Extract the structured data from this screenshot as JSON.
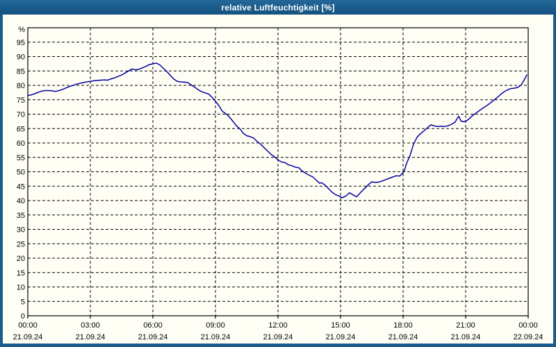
{
  "title_bar": {
    "title": "relative Luftfeuchtigkeit [%]"
  },
  "colors": {
    "frame": "#1b5c8c",
    "surface": "#fffef5",
    "line": "#0000a0",
    "grid": "#000000",
    "axis": "#000000",
    "label": "#000000",
    "title_text": "#ffffff"
  },
  "chart_data": {
    "type": "line",
    "title": "relative Luftfeuchtigkeit [%]",
    "ylabel": "%",
    "ylim": [
      0,
      100
    ],
    "xlim_hours": [
      0,
      24
    ],
    "grid": true,
    "y_axis": {
      "unit_label": "%",
      "zero_label": "0",
      "tick_values": [
        95,
        90,
        85,
        80,
        75,
        70,
        65,
        60,
        55,
        50,
        45,
        40,
        35,
        30,
        25,
        20,
        15,
        10,
        5
      ]
    },
    "x_ticks": [
      {
        "hour": 0,
        "time": "00:00",
        "date": "21.09.24"
      },
      {
        "hour": 3,
        "time": "03:00",
        "date": "21.09.24"
      },
      {
        "hour": 6,
        "time": "06:00",
        "date": "21.09.24"
      },
      {
        "hour": 9,
        "time": "09:00",
        "date": "21.09.24"
      },
      {
        "hour": 12,
        "time": "12:00",
        "date": "21.09.24"
      },
      {
        "hour": 15,
        "time": "15:00",
        "date": "21.09.24"
      },
      {
        "hour": 18,
        "time": "18:00",
        "date": "21.09.24"
      },
      {
        "hour": 21,
        "time": "21:00",
        "date": "21.09.24"
      },
      {
        "hour": 24,
        "time": "00:00",
        "date": "22.09.24"
      }
    ],
    "series": [
      {
        "name": "relative Luftfeuchtigkeit",
        "unit": "%",
        "color": "#0000a0",
        "points": [
          [
            0,
            76.5
          ],
          [
            0.17,
            76.7
          ],
          [
            0.33,
            77.1
          ],
          [
            0.5,
            77.6
          ],
          [
            0.67,
            78
          ],
          [
            0.83,
            78.2
          ],
          [
            1,
            78.2
          ],
          [
            1.17,
            78.1
          ],
          [
            1.33,
            77.9
          ],
          [
            1.5,
            78.2
          ],
          [
            1.67,
            78.6
          ],
          [
            1.83,
            79.1
          ],
          [
            2,
            79.6
          ],
          [
            2.17,
            80
          ],
          [
            2.33,
            80.4
          ],
          [
            2.5,
            80.7
          ],
          [
            2.67,
            81
          ],
          [
            2.83,
            81.2
          ],
          [
            3,
            81.4
          ],
          [
            3.17,
            81.6
          ],
          [
            3.33,
            81.7
          ],
          [
            3.5,
            81.8
          ],
          [
            3.67,
            81.9
          ],
          [
            3.83,
            81.8
          ],
          [
            4,
            82.3
          ],
          [
            4.17,
            82.6
          ],
          [
            4.33,
            83.1
          ],
          [
            4.5,
            83.6
          ],
          [
            4.67,
            84.3
          ],
          [
            4.83,
            85
          ],
          [
            5,
            85.7
          ],
          [
            5.17,
            85.4
          ],
          [
            5.33,
            85.6
          ],
          [
            5.5,
            86.1
          ],
          [
            5.67,
            86.6
          ],
          [
            5.83,
            87.2
          ],
          [
            6,
            87.5
          ],
          [
            6.17,
            87.7
          ],
          [
            6.33,
            87.1
          ],
          [
            6.5,
            85.9
          ],
          [
            6.67,
            84.8
          ],
          [
            6.83,
            83.5
          ],
          [
            7,
            82.2
          ],
          [
            7.17,
            81.4
          ],
          [
            7.33,
            81.2
          ],
          [
            7.5,
            81.1
          ],
          [
            7.67,
            81
          ],
          [
            7.83,
            80.2
          ],
          [
            8,
            79.4
          ],
          [
            8.17,
            78.5
          ],
          [
            8.33,
            77.8
          ],
          [
            8.5,
            77.4
          ],
          [
            8.67,
            77
          ],
          [
            8.83,
            75.9
          ],
          [
            9,
            74.5
          ],
          [
            9.17,
            72.9
          ],
          [
            9.33,
            71
          ],
          [
            9.5,
            70.2
          ],
          [
            9.67,
            69
          ],
          [
            9.83,
            67.6
          ],
          [
            10,
            66
          ],
          [
            10.17,
            64.9
          ],
          [
            10.33,
            63.4
          ],
          [
            10.5,
            62.5
          ],
          [
            10.67,
            62.2
          ],
          [
            10.83,
            61.7
          ],
          [
            11,
            60.5
          ],
          [
            11.17,
            59.6
          ],
          [
            11.33,
            58.4
          ],
          [
            11.5,
            57.2
          ],
          [
            11.67,
            56
          ],
          [
            11.83,
            55.2
          ],
          [
            12,
            54.1
          ],
          [
            12.17,
            53.4
          ],
          [
            12.33,
            53.2
          ],
          [
            12.5,
            52.4
          ],
          [
            12.67,
            52.1
          ],
          [
            12.83,
            51.6
          ],
          [
            13,
            51.4
          ],
          [
            13.17,
            50.2
          ],
          [
            13.33,
            49.5
          ],
          [
            13.5,
            48.8
          ],
          [
            13.67,
            48.2
          ],
          [
            13.83,
            47.1
          ],
          [
            14,
            46
          ],
          [
            14.1,
            46.2
          ],
          [
            14.25,
            45.4
          ],
          [
            14.42,
            44.2
          ],
          [
            14.58,
            43
          ],
          [
            14.75,
            42.1
          ],
          [
            14.92,
            41.6
          ],
          [
            15.08,
            41
          ],
          [
            15.25,
            41.6
          ],
          [
            15.43,
            42.7
          ],
          [
            15.6,
            42
          ],
          [
            15.77,
            41.3
          ],
          [
            16,
            43.1
          ],
          [
            16.17,
            44.3
          ],
          [
            16.33,
            45.5
          ],
          [
            16.5,
            46.5
          ],
          [
            16.67,
            46.3
          ],
          [
            16.83,
            46.4
          ],
          [
            17,
            46.8
          ],
          [
            17.17,
            47.3
          ],
          [
            17.33,
            47.7
          ],
          [
            17.5,
            48.2
          ],
          [
            17.67,
            48.6
          ],
          [
            17.83,
            48.5
          ],
          [
            17.95,
            49.3
          ],
          [
            18.05,
            50.2
          ],
          [
            18.17,
            53
          ],
          [
            18.33,
            55.6
          ],
          [
            18.5,
            59.6
          ],
          [
            18.67,
            62
          ],
          [
            18.83,
            63.2
          ],
          [
            19,
            64.2
          ],
          [
            19.17,
            65.3
          ],
          [
            19.33,
            66.3
          ],
          [
            19.5,
            65.9
          ],
          [
            19.67,
            65.7
          ],
          [
            19.83,
            65.8
          ],
          [
            20,
            65.7
          ],
          [
            20.17,
            66
          ],
          [
            20.33,
            66.5
          ],
          [
            20.5,
            67.3
          ],
          [
            20.6,
            68.6
          ],
          [
            20.67,
            69.3
          ],
          [
            20.78,
            67.6
          ],
          [
            20.9,
            67.4
          ],
          [
            21,
            67.5
          ],
          [
            21.17,
            68.4
          ],
          [
            21.33,
            69.5
          ],
          [
            21.5,
            70.4
          ],
          [
            21.67,
            71.3
          ],
          [
            21.83,
            72.1
          ],
          [
            22,
            72.9
          ],
          [
            22.17,
            73.8
          ],
          [
            22.33,
            74.7
          ],
          [
            22.5,
            75.7
          ],
          [
            22.67,
            76.8
          ],
          [
            22.83,
            77.7
          ],
          [
            23,
            78.4
          ],
          [
            23.17,
            78.9
          ],
          [
            23.33,
            79
          ],
          [
            23.5,
            79.3
          ],
          [
            23.67,
            80.2
          ],
          [
            23.83,
            82.2
          ],
          [
            23.93,
            83.6
          ]
        ]
      }
    ]
  }
}
